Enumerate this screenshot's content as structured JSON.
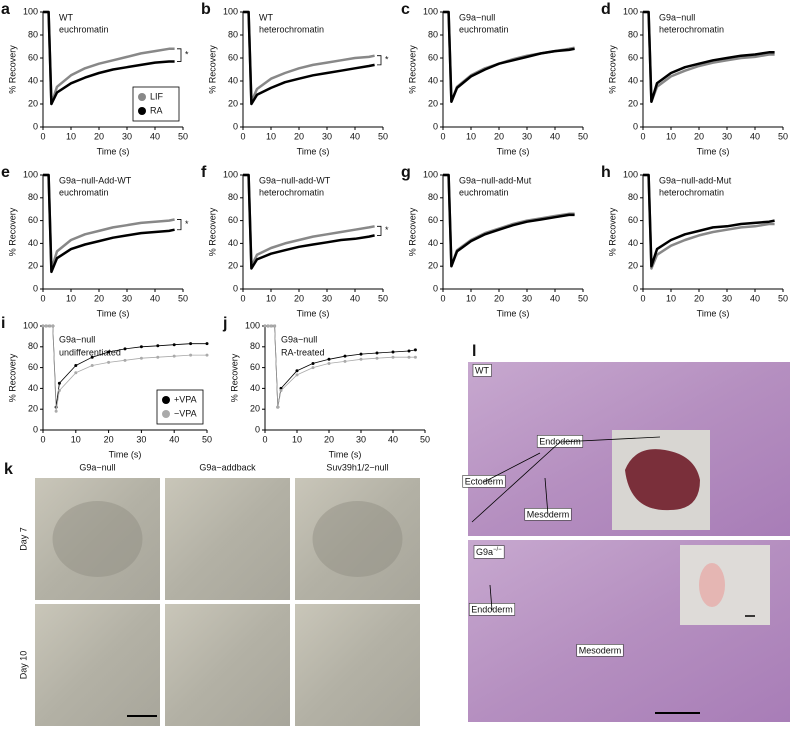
{
  "chart_data": [
    {
      "type": "line",
      "panel": "a",
      "title": "WT",
      "subtitle": "euchromatin",
      "xlabel": "Time (s)",
      "ylabel": "% Recovery",
      "annotation": "*",
      "legend": "lower right",
      "x": [
        0,
        1,
        2,
        3,
        5,
        10,
        15,
        20,
        25,
        30,
        35,
        40,
        45,
        47
      ],
      "xlim": [
        0,
        50
      ],
      "ylim": [
        0,
        100
      ],
      "xticks": [
        0,
        10,
        20,
        30,
        40,
        50
      ],
      "yticks": [
        0,
        20,
        40,
        60,
        80,
        100
      ],
      "series": [
        {
          "name": "LIF",
          "color": "#888888",
          "values": [
            100,
            100,
            100,
            20,
            35,
            45,
            51,
            55,
            58,
            61,
            64,
            66,
            68,
            68
          ]
        },
        {
          "name": "RA",
          "color": "#000000",
          "values": [
            100,
            100,
            100,
            20,
            30,
            38,
            43,
            47,
            50,
            52,
            54,
            56,
            57,
            57
          ]
        }
      ]
    },
    {
      "type": "line",
      "panel": "b",
      "title": "WT",
      "subtitle": "heterochromatin",
      "xlabel": "Time (s)",
      "ylabel": "% Recovery",
      "annotation": "*",
      "x": [
        0,
        1,
        2,
        3,
        5,
        10,
        15,
        20,
        25,
        30,
        35,
        40,
        45,
        47
      ],
      "xlim": [
        0,
        50
      ],
      "ylim": [
        0,
        100
      ],
      "xticks": [
        0,
        10,
        20,
        30,
        40,
        50
      ],
      "yticks": [
        0,
        20,
        40,
        60,
        80,
        100
      ],
      "series": [
        {
          "color": "#888888",
          "values": [
            100,
            100,
            100,
            22,
            33,
            42,
            47,
            51,
            54,
            56,
            58,
            60,
            61,
            62
          ]
        },
        {
          "color": "#000000",
          "values": [
            100,
            100,
            100,
            20,
            28,
            34,
            39,
            42,
            45,
            47,
            49,
            51,
            53,
            54
          ]
        }
      ]
    },
    {
      "type": "line",
      "panel": "c",
      "title": "G9a−null",
      "subtitle": "euchromatin",
      "xlabel": "Time (s)",
      "ylabel": "% Recovery",
      "x": [
        0,
        1,
        2,
        3,
        5,
        10,
        15,
        20,
        25,
        30,
        35,
        40,
        45,
        47
      ],
      "xlim": [
        0,
        50
      ],
      "ylim": [
        0,
        100
      ],
      "xticks": [
        0,
        10,
        20,
        30,
        40,
        50
      ],
      "yticks": [
        0,
        20,
        40,
        60,
        80,
        100
      ],
      "series": [
        {
          "color": "#888888",
          "values": [
            100,
            100,
            100,
            22,
            35,
            45,
            51,
            55,
            59,
            62,
            64,
            66,
            68,
            69
          ]
        },
        {
          "color": "#000000",
          "values": [
            100,
            100,
            100,
            22,
            34,
            44,
            50,
            55,
            58,
            61,
            64,
            66,
            67,
            68
          ]
        }
      ]
    },
    {
      "type": "line",
      "panel": "d",
      "title": "G9a−null",
      "subtitle": "heterochromatin",
      "xlabel": "Time (s)",
      "ylabel": "% Recovery",
      "x": [
        0,
        1,
        2,
        3,
        5,
        10,
        15,
        20,
        25,
        30,
        35,
        40,
        45,
        47
      ],
      "xlim": [
        0,
        50
      ],
      "ylim": [
        0,
        100
      ],
      "xticks": [
        0,
        10,
        20,
        30,
        40,
        50
      ],
      "yticks": [
        0,
        20,
        40,
        60,
        80,
        100
      ],
      "series": [
        {
          "color": "#888888",
          "values": [
            100,
            100,
            100,
            22,
            35,
            44,
            49,
            53,
            56,
            58,
            60,
            61,
            63,
            63
          ]
        },
        {
          "color": "#000000",
          "values": [
            100,
            100,
            100,
            22,
            38,
            47,
            52,
            55,
            58,
            60,
            62,
            63,
            65,
            65
          ]
        }
      ]
    },
    {
      "type": "line",
      "panel": "e",
      "title": "G9a−null-Add-WT",
      "subtitle": "euchromatin",
      "xlabel": "Time (s)",
      "ylabel": "% Recovery",
      "annotation": "*",
      "x": [
        0,
        1,
        2,
        3,
        5,
        10,
        15,
        20,
        25,
        30,
        35,
        40,
        45,
        47
      ],
      "xlim": [
        0,
        50
      ],
      "ylim": [
        0,
        100
      ],
      "xticks": [
        0,
        10,
        20,
        30,
        40,
        50
      ],
      "yticks": [
        0,
        20,
        40,
        60,
        80,
        100
      ],
      "series": [
        {
          "color": "#888888",
          "values": [
            100,
            100,
            100,
            17,
            33,
            43,
            48,
            51,
            54,
            56,
            58,
            59,
            60,
            61
          ]
        },
        {
          "color": "#000000",
          "values": [
            100,
            100,
            100,
            15,
            27,
            35,
            39,
            42,
            45,
            47,
            49,
            50,
            51,
            52
          ]
        }
      ]
    },
    {
      "type": "line",
      "panel": "f",
      "title": "G9a−null-add-WT",
      "subtitle": "heterochromatin",
      "xlabel": "Time (s)",
      "ylabel": "% Recovery",
      "annotation": "*",
      "x": [
        0,
        1,
        2,
        3,
        5,
        10,
        15,
        20,
        25,
        30,
        35,
        40,
        45,
        47
      ],
      "xlim": [
        0,
        50
      ],
      "ylim": [
        0,
        100
      ],
      "xticks": [
        0,
        10,
        20,
        30,
        40,
        50
      ],
      "yticks": [
        0,
        20,
        40,
        60,
        80,
        100
      ],
      "series": [
        {
          "color": "#888888",
          "values": [
            100,
            100,
            100,
            20,
            30,
            36,
            40,
            43,
            46,
            48,
            50,
            52,
            54,
            55
          ]
        },
        {
          "color": "#000000",
          "values": [
            100,
            100,
            100,
            18,
            26,
            31,
            34,
            37,
            39,
            41,
            43,
            44,
            46,
            47
          ]
        }
      ]
    },
    {
      "type": "line",
      "panel": "g",
      "title": "G9a−null-add-Mut",
      "subtitle": "euchromatin",
      "xlabel": "Time (s)",
      "ylabel": "% Recovery",
      "x": [
        0,
        1,
        2,
        3,
        5,
        10,
        15,
        20,
        25,
        30,
        35,
        40,
        45,
        47
      ],
      "xlim": [
        0,
        50
      ],
      "ylim": [
        0,
        100
      ],
      "xticks": [
        0,
        10,
        20,
        30,
        40,
        50
      ],
      "yticks": [
        0,
        20,
        40,
        60,
        80,
        100
      ],
      "series": [
        {
          "color": "#888888",
          "values": [
            100,
            100,
            100,
            20,
            34,
            43,
            49,
            53,
            57,
            60,
            62,
            64,
            66,
            66
          ]
        },
        {
          "color": "#000000",
          "values": [
            100,
            100,
            100,
            20,
            33,
            42,
            48,
            52,
            56,
            59,
            61,
            63,
            65,
            65
          ]
        }
      ]
    },
    {
      "type": "line",
      "panel": "h",
      "title": "G9a−null-add-Mut",
      "subtitle": "heterochromatin",
      "xlabel": "Time (s)",
      "ylabel": "% Recovery",
      "x": [
        0,
        1,
        2,
        3,
        5,
        10,
        15,
        20,
        25,
        30,
        35,
        40,
        45,
        47
      ],
      "xlim": [
        0,
        50
      ],
      "ylim": [
        0,
        100
      ],
      "xticks": [
        0,
        10,
        20,
        30,
        40,
        50
      ],
      "yticks": [
        0,
        20,
        40,
        60,
        80,
        100
      ],
      "series": [
        {
          "color": "#888888",
          "values": [
            100,
            100,
            100,
            18,
            30,
            38,
            43,
            47,
            50,
            52,
            54,
            55,
            57,
            57
          ]
        },
        {
          "color": "#000000",
          "values": [
            100,
            100,
            100,
            20,
            35,
            43,
            48,
            51,
            54,
            55,
            57,
            58,
            59,
            60
          ]
        }
      ]
    },
    {
      "type": "line",
      "panel": "i",
      "title": "G9a−null",
      "subtitle": "undifferentiated",
      "xlabel": "Time (s)",
      "ylabel": "% Recovery",
      "legend": "lower right",
      "markers": true,
      "x": [
        0,
        1,
        2,
        3,
        4,
        5,
        10,
        15,
        20,
        25,
        30,
        35,
        40,
        45,
        50
      ],
      "xlim": [
        0,
        50
      ],
      "ylim": [
        0,
        100
      ],
      "xticks": [
        0,
        10,
        20,
        30,
        40,
        50
      ],
      "yticks": [
        0,
        20,
        40,
        60,
        80,
        100
      ],
      "series": [
        {
          "name": "+VPA",
          "color": "#000000",
          "values": [
            100,
            100,
            100,
            100,
            22,
            45,
            62,
            70,
            75,
            78,
            80,
            81,
            82,
            83,
            83
          ]
        },
        {
          "name": "−VPA",
          "color": "#aaaaaa",
          "values": [
            100,
            100,
            100,
            100,
            18,
            38,
            55,
            62,
            65,
            67,
            69,
            70,
            71,
            72,
            72
          ]
        }
      ]
    },
    {
      "type": "line",
      "panel": "j",
      "title": "G9a−null",
      "subtitle": "RA-treated",
      "xlabel": "Time (s)",
      "ylabel": "% Recovery",
      "markers": true,
      "x": [
        0,
        1,
        2,
        3,
        4,
        5,
        10,
        15,
        20,
        25,
        30,
        35,
        40,
        45,
        47
      ],
      "xlim": [
        0,
        50
      ],
      "ylim": [
        0,
        100
      ],
      "xticks": [
        0,
        10,
        20,
        30,
        40,
        50
      ],
      "yticks": [
        0,
        20,
        40,
        60,
        80,
        100
      ],
      "series": [
        {
          "color": "#000000",
          "values": [
            100,
            100,
            100,
            100,
            22,
            40,
            57,
            64,
            68,
            71,
            73,
            74,
            75,
            76,
            77
          ]
        },
        {
          "color": "#aaaaaa",
          "values": [
            100,
            100,
            100,
            100,
            22,
            38,
            53,
            60,
            64,
            66,
            68,
            69,
            70,
            70,
            70
          ]
        }
      ]
    }
  ],
  "panel_k": {
    "label": "k",
    "columns": [
      "G9a−null",
      "G9a−addback",
      "Suv39h1/2−null"
    ],
    "rows": [
      "Day 7",
      "Day 10"
    ]
  },
  "panel_l": {
    "label": "l",
    "top": {
      "genotype": "WT",
      "labels": [
        "Ectoderm",
        "Endoderm",
        "Mesoderm"
      ]
    },
    "bottom": {
      "genotype": "G9a",
      "superscript": "−/−",
      "labels": [
        "Endoderm",
        "Mesoderm"
      ]
    }
  }
}
